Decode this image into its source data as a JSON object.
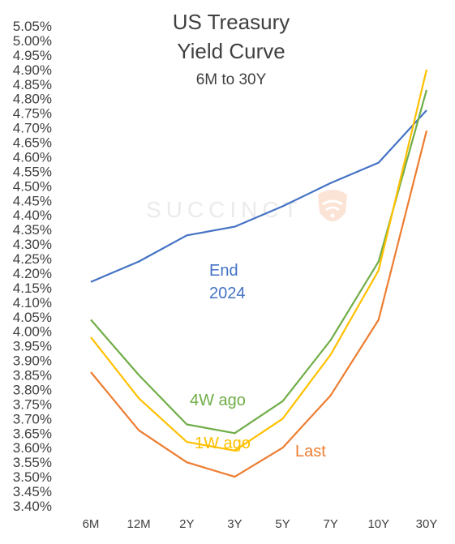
{
  "chart_data": {
    "type": "line",
    "title": "US Treasury",
    "title_line2": "Yield Curve",
    "subtitle": "6M to 30Y",
    "watermark": "SUCCINCT",
    "categories": [
      "6M",
      "12M",
      "2Y",
      "3Y",
      "5Y",
      "7Y",
      "10Y",
      "30Y"
    ],
    "ylim": [
      3.4,
      5.05
    ],
    "y_ticks": [
      "3.40%",
      "3.45%",
      "3.50%",
      "3.55%",
      "3.60%",
      "3.65%",
      "3.70%",
      "3.75%",
      "3.80%",
      "3.85%",
      "3.90%",
      "3.95%",
      "4.00%",
      "4.05%",
      "4.10%",
      "4.15%",
      "4.20%",
      "4.25%",
      "4.30%",
      "4.35%",
      "4.40%",
      "4.45%",
      "4.50%",
      "4.55%",
      "4.60%",
      "4.65%",
      "4.70%",
      "4.75%",
      "4.80%",
      "4.85%",
      "4.90%",
      "4.95%",
      "5.00%",
      "5.05%"
    ],
    "series": [
      {
        "name": "End 2024",
        "label_lines": [
          "End",
          "2024"
        ],
        "color": "#4472c4",
        "values": [
          4.17,
          4.24,
          4.33,
          4.36,
          4.43,
          4.51,
          4.58,
          4.76
        ]
      },
      {
        "name": "4W ago",
        "label_lines": [
          "4W ago"
        ],
        "color": "#70ad47",
        "values": [
          4.04,
          3.85,
          3.68,
          3.65,
          3.76,
          3.97,
          4.24,
          4.83
        ]
      },
      {
        "name": "1W ago",
        "label_lines": [
          "1W ago"
        ],
        "color": "#ffc000",
        "values": [
          3.98,
          3.77,
          3.62,
          3.59,
          3.7,
          3.92,
          4.21,
          4.9
        ]
      },
      {
        "name": "Last",
        "label_lines": [
          "Last"
        ],
        "color": "#ed7d31",
        "values": [
          3.86,
          3.66,
          3.55,
          3.5,
          3.6,
          3.78,
          4.04,
          4.69
        ]
      }
    ]
  }
}
